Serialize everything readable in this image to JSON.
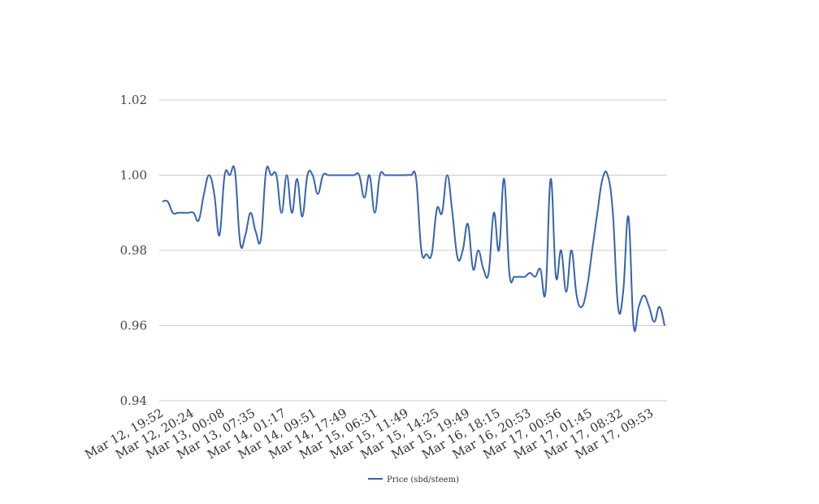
{
  "chart_data": {
    "type": "line",
    "title": "",
    "xlabel": "",
    "ylabel": "",
    "ylim": [
      0.94,
      1.02
    ],
    "yticks": [
      "0.94",
      "0.96",
      "0.98",
      "1.00",
      "1.02"
    ],
    "grid": true,
    "legend_position": "bottom-center",
    "x_tick_labels": [
      "Mar 12, 19:52",
      "Mar 12, 20:24",
      "Mar 13, 00:08",
      "Mar 13, 07:35",
      "Mar 14, 01:17",
      "Mar 14, 09:51",
      "Mar 14, 17:49",
      "Mar 15, 06:31",
      "Mar 15, 11:49",
      "Mar 15, 14:25",
      "Mar 15, 19:49",
      "Mar 16, 18:15",
      "Mar 16, 20:53",
      "Mar 17, 00:56",
      "Mar 17, 01:45",
      "Mar 17, 08:32",
      "Mar 17, 09:53"
    ],
    "series": [
      {
        "name": "Price (sbd/steem)",
        "color": "#3563b3",
        "values": [
          0.993,
          0.993,
          0.99,
          0.99,
          0.99,
          0.99,
          0.99,
          0.988,
          0.995,
          1.0,
          0.995,
          0.984,
          1.0,
          1.0,
          1.001,
          0.982,
          0.984,
          0.99,
          0.985,
          0.983,
          1.001,
          1.0,
          1.0,
          0.99,
          1.0,
          0.99,
          0.999,
          0.989,
          1.0,
          1.0,
          0.995,
          1.0,
          1.0,
          1.0,
          1.0,
          1.0,
          1.0,
          1.0,
          1.0,
          0.994,
          1.0,
          0.99,
          1.0,
          1.0,
          1.0,
          1.0,
          1.0,
          1.0,
          1.0,
          0.999,
          0.98,
          0.979,
          0.979,
          0.991,
          0.99,
          1.0,
          0.99,
          0.978,
          0.98,
          0.987,
          0.975,
          0.98,
          0.975,
          0.974,
          0.99,
          0.98,
          0.999,
          0.974,
          0.973,
          0.973,
          0.973,
          0.974,
          0.973,
          0.975,
          0.969,
          0.999,
          0.973,
          0.98,
          0.969,
          0.98,
          0.968,
          0.965,
          0.97,
          0.98,
          0.99,
          0.999,
          1.0,
          0.99,
          0.965,
          0.969,
          0.989,
          0.96,
          0.965,
          0.968,
          0.965,
          0.961,
          0.965,
          0.96
        ]
      }
    ]
  }
}
